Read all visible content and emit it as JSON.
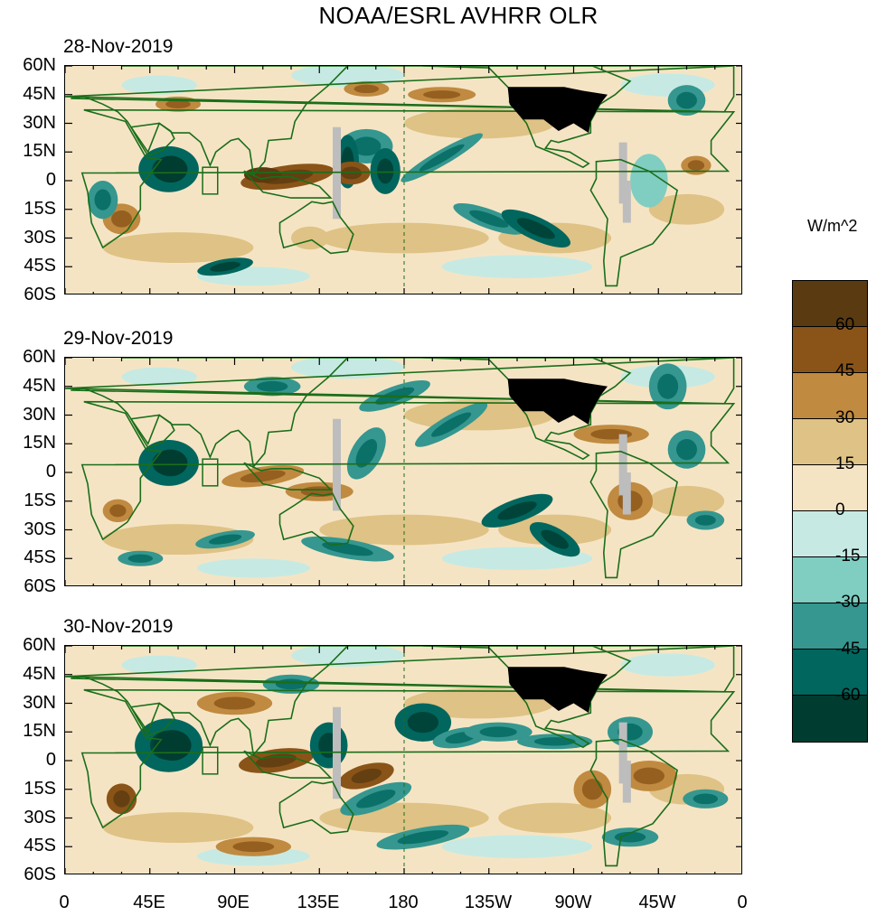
{
  "title": "NOAA/ESRL AVHRR OLR",
  "panels": [
    {
      "date": "28-Nov-2019"
    },
    {
      "date": "29-Nov-2019"
    },
    {
      "date": "30-Nov-2019"
    }
  ],
  "lat_labels": [
    "60N",
    "45N",
    "30N",
    "15N",
    "0",
    "15S",
    "30S",
    "45S",
    "60S"
  ],
  "lon_labels": [
    "0",
    "45E",
    "90E",
    "135E",
    "180",
    "135W",
    "90W",
    "45W",
    "0"
  ],
  "colorbar": {
    "unit": "W/m^2",
    "labels": [
      "60",
      "45",
      "30",
      "15",
      "0",
      "-15",
      "-30",
      "-45",
      "-60"
    ],
    "colors": [
      "#5a3a10",
      "#8a5418",
      "#c08a40",
      "#dfc285",
      "#f5e4c4",
      "#c6eae3",
      "#80cdc1",
      "#35978f",
      "#01665e",
      "#003c30"
    ]
  },
  "colors": {
    "land_outline": "#1a6e1a",
    "missing": "#bdbdbd",
    "us_mask": "#000000"
  }
}
